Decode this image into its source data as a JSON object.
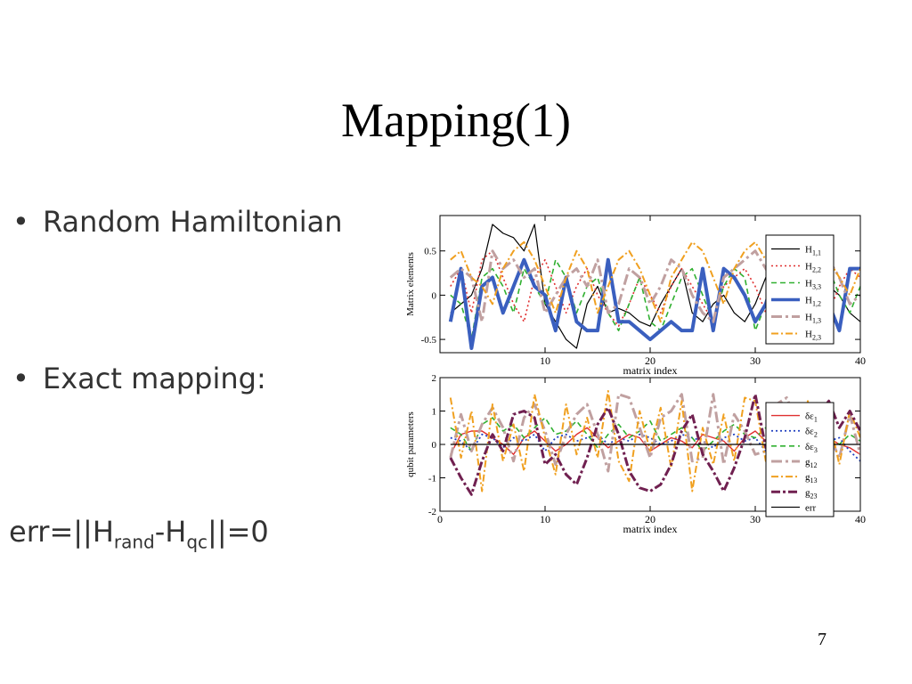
{
  "title": "Mapping(1)",
  "bullets": [
    {
      "text": "Random Hamiltonian"
    },
    {
      "text": "Exact mapping:"
    }
  ],
  "formula": {
    "prefix": "err=||H",
    "sub1": "rand",
    "mid": "-H",
    "sub2": "qc",
    "suffix": "||=0"
  },
  "page_number": "7",
  "chart_data": [
    {
      "type": "line",
      "ylabel": "Matrix elements",
      "xlabel": "matrix index",
      "xlim": [
        0,
        40
      ],
      "ylim": [
        -0.65,
        0.9
      ],
      "xticks": [
        10,
        20,
        30,
        40
      ],
      "yticks": [
        -0.5,
        0,
        0.5
      ],
      "ytick_labels": [
        "-0.5",
        "0",
        "0.5"
      ],
      "legend": "right",
      "grid": false,
      "x": [
        1,
        2,
        3,
        4,
        5,
        6,
        7,
        8,
        9,
        10,
        11,
        12,
        13,
        14,
        15,
        16,
        17,
        18,
        19,
        20,
        21,
        22,
        23,
        24,
        25,
        26,
        27,
        28,
        29,
        30,
        31,
        32,
        33,
        34,
        35,
        36,
        37,
        38,
        39,
        40
      ],
      "series": [
        {
          "name": "H1,1",
          "sub": "1,1",
          "color": "#000000",
          "width": 1.2,
          "dash": "",
          "values": [
            -0.2,
            -0.1,
            0,
            0.3,
            0.8,
            0.7,
            0.65,
            0.5,
            0.8,
            -0.1,
            -0.3,
            -0.5,
            -0.6,
            -0.1,
            0.1,
            -0.2,
            -0.15,
            -0.2,
            -0.3,
            -0.35,
            -0.1,
            0.1,
            0.3,
            -0.2,
            -0.3,
            -0.1,
            0,
            -0.2,
            -0.3,
            -0.1,
            0.2,
            0.3,
            0.1,
            -0.2,
            -0.3,
            -0.1,
            0.1,
            0,
            -0.2,
            -0.3
          ]
        },
        {
          "name": "H2,2",
          "sub": "2,2",
          "color": "#e03030",
          "width": 1.6,
          "dash": "2,3",
          "values": [
            0.1,
            0.3,
            -0.2,
            0.4,
            0.5,
            0.2,
            -0.1,
            -0.3,
            0.2,
            0.4,
            0.1,
            -0.2,
            0.1,
            0.3,
            0,
            -0.2,
            -0.35,
            -0.1,
            0.2,
            0,
            -0.2,
            0.1,
            0.3,
            0.1,
            -0.1,
            -0.3,
            0.1,
            0.2,
            0.3,
            0.1,
            -0.2,
            -0.1,
            0.2,
            0.4,
            0.2,
            0,
            -0.2,
            0.1,
            0.3,
            0.2
          ]
        },
        {
          "name": "H3,3",
          "sub": "3,3",
          "color": "#30b030",
          "width": 1.6,
          "dash": "6,4",
          "values": [
            0,
            -0.1,
            -0.5,
            0.2,
            0.3,
            0.1,
            -0.2,
            0.3,
            0.1,
            -0.1,
            0.4,
            0.2,
            -0.2,
            0.1,
            0.2,
            -0.2,
            -0.4,
            -0.1,
            0.2,
            -0.3,
            -0.4,
            -0.1,
            0.2,
            0.3,
            0,
            -0.3,
            0.1,
            0.3,
            0.2,
            -0.4,
            -0.1,
            0.2,
            0,
            -0.3,
            -0.1,
            0.2,
            0.3,
            0,
            -0.2,
            0.1
          ]
        },
        {
          "name": "H1,2",
          "sub": "1,2",
          "color": "#3a5fbf",
          "width": 4,
          "dash": "",
          "values": [
            -0.3,
            0.3,
            -0.6,
            0.1,
            0.2,
            -0.2,
            0.1,
            0.4,
            0.1,
            0,
            -0.4,
            0.2,
            -0.3,
            -0.4,
            -0.4,
            0.4,
            -0.3,
            -0.3,
            -0.4,
            -0.5,
            -0.4,
            -0.3,
            -0.4,
            -0.4,
            0.3,
            -0.4,
            0.3,
            0.2,
            0,
            -0.3,
            -0.1,
            0.3,
            0.2,
            -0.2,
            0,
            0.2,
            -0.1,
            -0.4,
            0.3,
            0.3
          ]
        },
        {
          "name": "H1,3",
          "sub": "1,3",
          "color": "#c0a0a0",
          "width": 3,
          "dash": "12,4,3,4",
          "values": [
            0.2,
            0.3,
            0.2,
            -0.3,
            0.5,
            0.3,
            0.4,
            0.2,
            0.3,
            -0.2,
            0,
            0.2,
            0.3,
            0.1,
            0.4,
            -0.2,
            -0.1,
            0.3,
            0.2,
            -0.1,
            0.1,
            0.4,
            0.3,
            0,
            -0.2,
            -0.3,
            0.2,
            0.3,
            0.4,
            0.5,
            0.3,
            0.1,
            0,
            -0.2,
            0.1,
            0.3,
            0.4,
            0.2,
            -0.1,
            0
          ]
        },
        {
          "name": "H2,3",
          "sub": "2,3",
          "color": "#f0a020",
          "width": 2,
          "dash": "8,3,2,3",
          "values": [
            0.4,
            0.5,
            0.2,
            0.1,
            -0.1,
            0.3,
            0.5,
            0.6,
            0.4,
            0.1,
            -0.2,
            0.2,
            0.5,
            0.3,
            -0.2,
            0.1,
            0.4,
            0.5,
            0.3,
            0,
            -0.3,
            0.2,
            0.4,
            0.6,
            0.5,
            0.2,
            -0.1,
            0.3,
            0.5,
            0.6,
            0.4,
            0.3,
            0.1,
            -0.2,
            0.2,
            0.5,
            0.4,
            0.2,
            0,
            0.3
          ]
        }
      ]
    },
    {
      "type": "line",
      "ylabel": "qubit parameters",
      "xlabel": "matrix index",
      "xlim": [
        0,
        40
      ],
      "ylim": [
        -2,
        2
      ],
      "xticks": [
        0,
        10,
        20,
        30,
        40
      ],
      "yticks": [
        -2,
        -1,
        0,
        1,
        2
      ],
      "ytick_labels": [
        "-2",
        "-1",
        "0",
        "1",
        "2"
      ],
      "legend": "right",
      "grid": false,
      "x": [
        1,
        2,
        3,
        4,
        5,
        6,
        7,
        8,
        9,
        10,
        11,
        12,
        13,
        14,
        15,
        16,
        17,
        18,
        19,
        20,
        21,
        22,
        23,
        24,
        25,
        26,
        27,
        28,
        29,
        30,
        31,
        32,
        33,
        34,
        35,
        36,
        37,
        38,
        39,
        40
      ],
      "series": [
        {
          "name": "δε1",
          "prefix": "δε",
          "sub": "1",
          "color": "#e03030",
          "width": 1.4,
          "dash": "",
          "values": [
            -0.3,
            0.3,
            0.4,
            0.4,
            0.2,
            0,
            -0.3,
            0.2,
            0.4,
            0.1,
            -0.2,
            0,
            0.3,
            0.5,
            0.2,
            -0.1,
            0.1,
            0.3,
            0.2,
            -0.2,
            0,
            0.2,
            0.1,
            -0.1,
            0.3,
            0.2,
            0.1,
            -0.2,
            0.2,
            0.4,
            0.1,
            0,
            -0.1,
            -0.2,
            0.1,
            0.3,
            0.2,
            0,
            -0.1,
            -0.3
          ]
        },
        {
          "name": "δε2",
          "prefix": "δε",
          "sub": "2",
          "color": "#2040c0",
          "width": 1.8,
          "dash": "2,3",
          "values": [
            0.2,
            0.1,
            -0.2,
            0.3,
            0.2,
            -0.1,
            0.2,
            0.1,
            0.3,
            -0.2,
            0.2,
            0.3,
            0.1,
            0.2,
            0.3,
            0,
            0.2,
            0.1,
            0.3,
            0.2,
            0,
            0.1,
            0.3,
            0.2,
            0.1,
            -0.1,
            0.2,
            0.3,
            0.1,
            0.2,
            -0.2,
            0.1,
            0.3,
            0.2,
            0,
            -0.3,
            0.1,
            0.2,
            -0.2,
            -0.5
          ]
        },
        {
          "name": "δε3",
          "prefix": "δε",
          "sub": "3",
          "color": "#30b030",
          "width": 1.6,
          "dash": "6,4",
          "values": [
            0.5,
            0.3,
            -0.2,
            0.6,
            0.8,
            0.4,
            0.6,
            0.2,
            0.5,
            0.8,
            0.3,
            0.4,
            0.7,
            0.3,
            -0.1,
            0.3,
            0.6,
            0.2,
            0.4,
            0.7,
            0.1,
            0.3,
            0.5,
            0.2,
            -0.2,
            0.1,
            0.4,
            0.6,
            0.3,
            0.2,
            0.5,
            0.4,
            0.6,
            0.3,
            0.1,
            0.4,
            0.2,
            0,
            0.3,
            0.1
          ]
        },
        {
          "name": "g12",
          "prefix": "g",
          "sub": "12",
          "color": "#c0a0a0",
          "width": 3,
          "dash": "12,4,3,4",
          "values": [
            -0.4,
            0.9,
            -0.2,
            0.6,
            1.1,
            0.5,
            -0.5,
            0.8,
            1.2,
            0.4,
            -0.6,
            0.3,
            0.9,
            1.2,
            0.3,
            -0.8,
            1.5,
            1.4,
            0.5,
            -0.4,
            0.8,
            1.0,
            1.5,
            -0.5,
            -0.4,
            1.5,
            -0.6,
            0.9,
            0.4,
            -0.3,
            -0.2,
            1.2,
            1.4,
            0.6,
            0.2,
            1.3,
            0.3,
            -0.4,
            0.9,
            -0.3
          ]
        },
        {
          "name": "g13",
          "prefix": "g",
          "sub": "13",
          "color": "#f0a020",
          "width": 2,
          "dash": "8,3,2,3",
          "values": [
            1.4,
            -0.4,
            1.0,
            -1.4,
            1.2,
            -0.5,
            0.6,
            -0.8,
            1.5,
            0.2,
            -0.9,
            1.2,
            -0.3,
            0.8,
            -0.4,
            1.6,
            -0.5,
            -1.1,
            1.0,
            -0.2,
            1.1,
            -0.7,
            1.3,
            -1.4,
            0.5,
            -0.6,
            0.9,
            -0.5,
            1.4,
            1.3,
            -0.5,
            1.2,
            0.3,
            -0.8,
            1.3,
            -0.4,
            0.8,
            -0.6,
            1.0,
            0.2
          ]
        },
        {
          "name": "g23",
          "prefix": "g",
          "sub": "23",
          "color": "#702050",
          "width": 3,
          "dash": "10,3,3,3",
          "values": [
            -0.4,
            -1.0,
            -1.5,
            -0.5,
            0.3,
            -0.2,
            0.9,
            1.0,
            0.8,
            -0.6,
            -0.3,
            -0.9,
            -1.2,
            -0.4,
            0.6,
            1.1,
            0.3,
            -0.8,
            -1.3,
            -1.4,
            -1.2,
            -0.6,
            0.4,
            0.9,
            -0.3,
            -0.8,
            -1.4,
            -0.7,
            0.2,
            1.5,
            -0.1,
            1.0,
            -0.3,
            -0.9,
            0.7,
            0.9,
            1.3,
            0.5,
            1.0,
            0.4
          ]
        },
        {
          "name": "err",
          "prefix": "err",
          "sub": "",
          "color": "#000000",
          "width": 1.2,
          "dash": "",
          "values": [
            0,
            0,
            0,
            0,
            0,
            0,
            0,
            0,
            0,
            0,
            0,
            0,
            0,
            0,
            0,
            0,
            0,
            0,
            0,
            0,
            0,
            0,
            0,
            0,
            0,
            0,
            0,
            0,
            0,
            0,
            0,
            0,
            0,
            0,
            0,
            0,
            0,
            0,
            0,
            0
          ]
        }
      ]
    }
  ]
}
